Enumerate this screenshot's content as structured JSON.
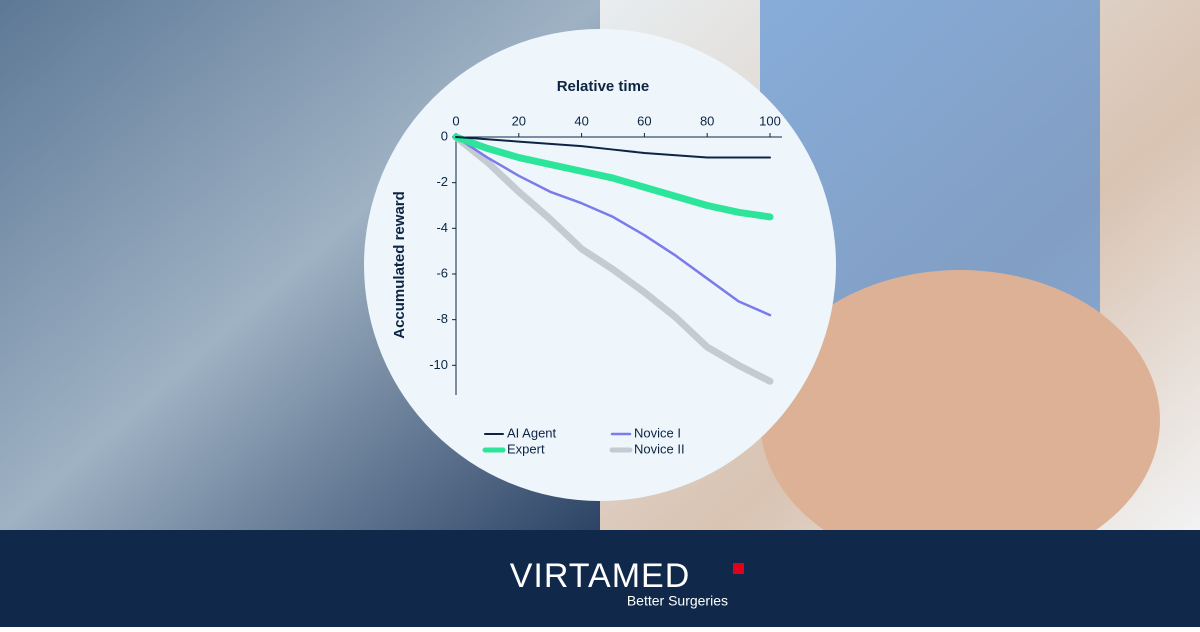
{
  "chart_data": {
    "type": "line",
    "x_label": "Relative time",
    "y_label": "Accumulated reward",
    "x": [
      0,
      10,
      20,
      30,
      40,
      50,
      60,
      70,
      80,
      90,
      100
    ],
    "series": [
      {
        "name": "AI Agent",
        "color": "#0d2442",
        "values": [
          0,
          -0.1,
          -0.2,
          -0.3,
          -0.4,
          -0.55,
          -0.7,
          -0.8,
          -0.9,
          -0.9,
          -0.9
        ]
      },
      {
        "name": "Expert",
        "color": "#2de59a",
        "values": [
          0,
          -0.5,
          -0.9,
          -1.2,
          -1.5,
          -1.8,
          -2.2,
          -2.6,
          -3.0,
          -3.3,
          -3.5
        ]
      },
      {
        "name": "Novice I",
        "color": "#7b7bea",
        "values": [
          0,
          -0.9,
          -1.7,
          -2.4,
          -2.9,
          -3.5,
          -4.3,
          -5.2,
          -6.2,
          -7.2,
          -7.8
        ]
      },
      {
        "name": "Novice II",
        "color": "#c5cbd3",
        "values": [
          0,
          -1.1,
          -2.4,
          -3.6,
          -4.9,
          -5.8,
          -6.8,
          -7.9,
          -9.2,
          -10.0,
          -10.7
        ]
      }
    ],
    "xlim": [
      0,
      100
    ],
    "xticks": [
      0,
      20,
      40,
      60,
      80,
      100
    ],
    "ylim": [
      -11.3,
      0
    ],
    "yticks": [
      0,
      -2,
      -4,
      -6,
      -8,
      -10
    ],
    "legend": "bottom"
  },
  "brand": {
    "name": "VIRTAMED",
    "tagline": "Better Surgeries"
  }
}
